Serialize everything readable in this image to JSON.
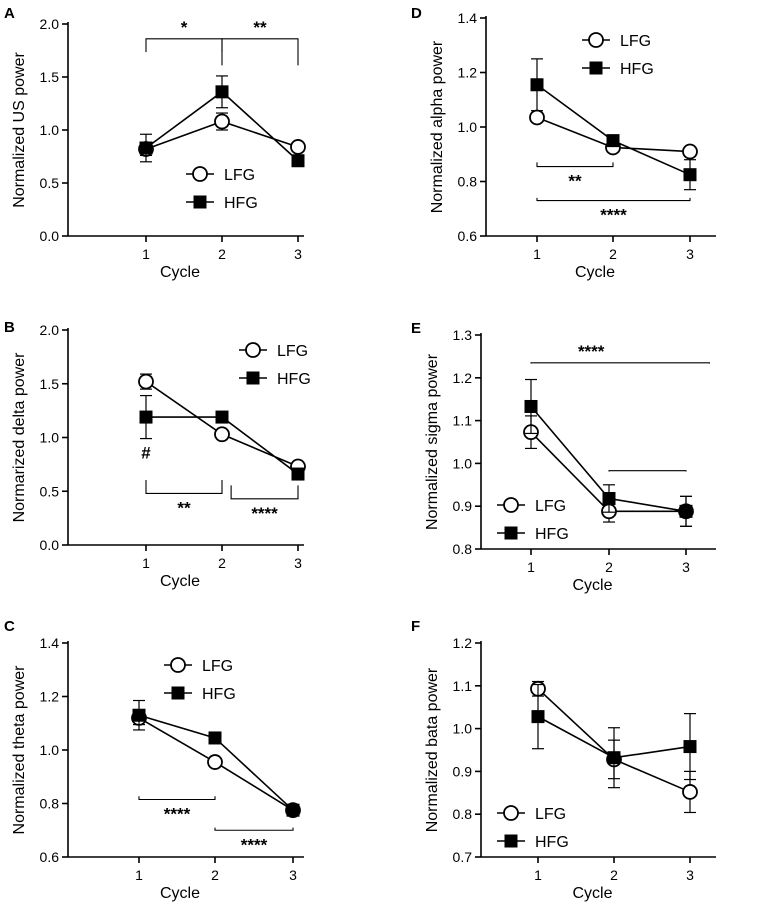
{
  "figure": {
    "series_styles": {
      "LFG": {
        "marker": "open-circle",
        "color": "#000000"
      },
      "HFG": {
        "marker": "filled-square",
        "color": "#000000"
      }
    }
  },
  "chart_data": [
    {
      "id": "A",
      "type": "line",
      "letter": "A",
      "xlabel": "Cycle",
      "ylabel": "Normalized US power",
      "categories": [
        "1",
        "2",
        "3"
      ],
      "ylim": [
        0,
        2.0
      ],
      "yticks": [
        "0.0",
        "0.5",
        "1.0",
        "1.5",
        "2.0"
      ],
      "legend_position": "bottom-center",
      "series": [
        {
          "name": "LFG",
          "values": [
            0.82,
            1.08,
            0.84
          ],
          "err": [
            0.06,
            0.08,
            0.04
          ]
        },
        {
          "name": "HFG",
          "values": [
            0.83,
            1.36,
            0.71
          ],
          "err": [
            0.13,
            0.15,
            0.05
          ]
        }
      ],
      "annotations": [
        {
          "kind": "bracket",
          "from": 1,
          "to": 2,
          "dir": "down",
          "level": 1.86,
          "drop": 0.5,
          "label": "*"
        },
        {
          "kind": "bracket",
          "from": 2,
          "to": 3,
          "dir": "down",
          "level": 1.86,
          "drop": 1.0,
          "label": "**"
        }
      ]
    },
    {
      "id": "D",
      "type": "line",
      "letter": "D",
      "xlabel": "Cycle",
      "ylabel": "Normalized alpha power",
      "categories": [
        "1",
        "2",
        "3"
      ],
      "ylim": [
        0.6,
        1.4
      ],
      "yticks": [
        "0.6",
        "0.8",
        "1.0",
        "1.2",
        "1.4"
      ],
      "legend_position": "top-center",
      "series": [
        {
          "name": "LFG",
          "values": [
            1.035,
            0.925,
            0.91
          ],
          "err": [
            0,
            0,
            0
          ]
        },
        {
          "name": "HFG",
          "values": [
            1.155,
            0.95,
            0.825
          ],
          "err": [
            0.095,
            0,
            0.055
          ]
        }
      ],
      "annotations": [
        {
          "kind": "bracket",
          "from": 1,
          "to": 2,
          "dir": "up",
          "level": 0.855,
          "drop": 0.15,
          "label": "**"
        },
        {
          "kind": "bracket",
          "from": 1,
          "to": 3,
          "dir": "up",
          "level": 0.73,
          "drop": 0.1,
          "label": "****"
        }
      ]
    },
    {
      "id": "B",
      "type": "line",
      "letter": "B",
      "xlabel": "Cycle",
      "ylabel": "Normarized delta power",
      "categories": [
        "1",
        "2",
        "3"
      ],
      "ylim": [
        0,
        2.0
      ],
      "yticks": [
        "0.0",
        "0.5",
        "1.0",
        "1.5",
        "2.0"
      ],
      "legend_position": "top-right",
      "series": [
        {
          "name": "LFG",
          "values": [
            1.52,
            1.03,
            0.73
          ],
          "err": [
            0.07,
            0,
            0
          ]
        },
        {
          "name": "HFG",
          "values": [
            1.19,
            1.19,
            0.66
          ],
          "err": [
            0.2,
            0,
            0.05
          ]
        }
      ],
      "annotations": [
        {
          "kind": "bracket",
          "from": 1,
          "to": 2,
          "dir": "up",
          "level": 0.48,
          "drop": 0.5,
          "label": "**"
        },
        {
          "kind": "bracket",
          "from": 2.12,
          "to": 3,
          "dir": "up",
          "level": 0.43,
          "drop": 0.5,
          "label": "****"
        },
        {
          "kind": "text",
          "x": 1,
          "y": 0.85,
          "label": "#"
        }
      ]
    },
    {
      "id": "E",
      "type": "line",
      "letter": "E",
      "xlabel": "Cycle",
      "ylabel": "Normalized sigma power",
      "categories": [
        "1",
        "2",
        "3"
      ],
      "ylim": [
        0.8,
        1.3
      ],
      "yticks": [
        "0.8",
        "0.9",
        "1.0",
        "1.1",
        "1.2",
        "1.3"
      ],
      "legend_position": "bottom-left",
      "series": [
        {
          "name": "LFG",
          "values": [
            1.073,
            0.888,
            0.888
          ],
          "err": [
            0.038,
            0.025,
            0.035
          ]
        },
        {
          "name": "HFG",
          "values": [
            1.133,
            0.918,
            0.888
          ],
          "err": [
            0.063,
            0.032,
            0.035
          ]
        }
      ],
      "annotations": [
        {
          "kind": "bracket",
          "from": 1,
          "to": 3.3,
          "dir": "down",
          "level": 1.235,
          "drop": 0.03,
          "label": "****"
        },
        {
          "kind": "bracket",
          "from": 2,
          "to": 3,
          "dir": "down",
          "level": 0.983,
          "drop": 0.03,
          "label": ""
        }
      ]
    },
    {
      "id": "C",
      "type": "line",
      "letter": "C",
      "xlabel": "Cycle",
      "ylabel": "Normalized theta power",
      "categories": [
        "1",
        "2",
        "3"
      ],
      "ylim": [
        0.6,
        1.4
      ],
      "yticks": [
        "0.6",
        "0.8",
        "1.0",
        "1.2",
        "1.4"
      ],
      "legend_position": "top-center",
      "series": [
        {
          "name": "LFG",
          "values": [
            1.12,
            0.955,
            0.775
          ],
          "err": [
            0.025,
            0,
            0.015
          ]
        },
        {
          "name": "HFG",
          "values": [
            1.13,
            1.045,
            0.775
          ],
          "err": [
            0.055,
            0,
            0.015
          ]
        }
      ],
      "annotations": [
        {
          "kind": "bracket",
          "from": 1,
          "to": 2,
          "dir": "up",
          "level": 0.815,
          "drop": 0.12,
          "label": "****"
        },
        {
          "kind": "bracket",
          "from": 2,
          "to": 3,
          "dir": "up",
          "level": 0.7,
          "drop": 0.1,
          "label": "****"
        }
      ]
    },
    {
      "id": "F",
      "type": "line",
      "letter": "F",
      "xlabel": "Cycle",
      "ylabel": "Normalized bata power",
      "categories": [
        "1",
        "2",
        "3"
      ],
      "ylim": [
        0.7,
        1.2
      ],
      "yticks": [
        "0.7",
        "0.8",
        "0.9",
        "1.0",
        "1.1",
        "1.2"
      ],
      "legend_position": "bottom-left",
      "series": [
        {
          "name": "LFG",
          "values": [
            1.093,
            0.928,
            0.852
          ],
          "err": [
            0.017,
            0.045,
            0.048
          ]
        },
        {
          "name": "HFG",
          "values": [
            1.028,
            0.932,
            0.958
          ],
          "err": [
            0.075,
            0.07,
            0.077
          ]
        }
      ],
      "annotations": []
    }
  ]
}
